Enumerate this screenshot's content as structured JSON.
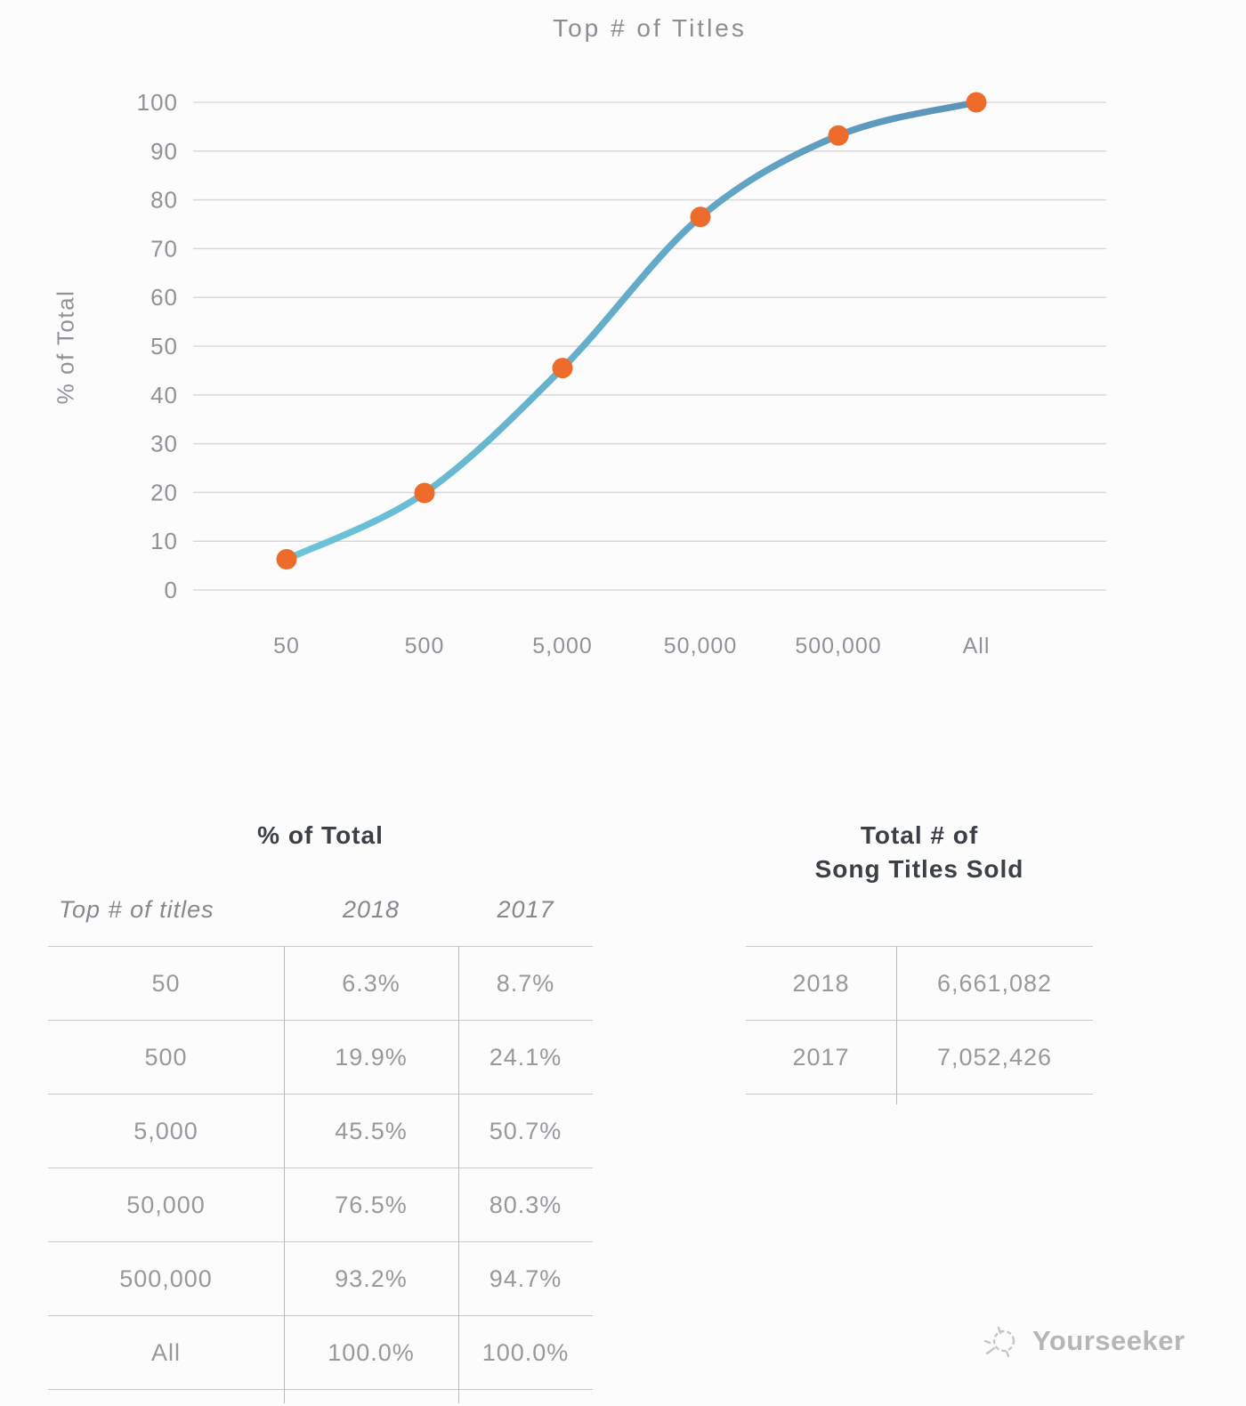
{
  "page": {
    "background": "#fcfcfc"
  },
  "chart_data": {
    "type": "line",
    "title": "Top # of Titles",
    "xlabel": "",
    "ylabel": "% of Total",
    "categories": [
      "50",
      "500",
      "5,000",
      "50,000",
      "500,000",
      "All"
    ],
    "series": [
      {
        "name": "2018",
        "values": [
          6.3,
          19.9,
          45.5,
          76.5,
          93.2,
          100.0
        ]
      }
    ],
    "ylim": [
      0,
      100
    ],
    "yticks": [
      0,
      10,
      20,
      30,
      40,
      50,
      60,
      70,
      80,
      90,
      100
    ],
    "grid": true,
    "legend": false,
    "grid_color": "#d9d9d9",
    "axis_text_color": "#8f9296",
    "line_gradient_start": "#6cc5d9",
    "line_gradient_end": "#5b92b9",
    "marker_color": "#ed6c2c"
  },
  "left_table": {
    "title": "% of Total",
    "columns": [
      "Top # of titles",
      "2018",
      "2017"
    ],
    "rows": [
      [
        "50",
        "6.3%",
        "8.7%"
      ],
      [
        "500",
        "19.9%",
        "24.1%"
      ],
      [
        "5,000",
        "45.5%",
        "50.7%"
      ],
      [
        "50,000",
        "76.5%",
        "80.3%"
      ],
      [
        "500,000",
        "93.2%",
        "94.7%"
      ],
      [
        "All",
        "100.0%",
        "100.0%"
      ]
    ]
  },
  "right_table": {
    "title_line1": "Total # of",
    "title_line2": "Song Titles Sold",
    "rows": [
      [
        "2018",
        "6,661,082"
      ],
      [
        "2017",
        "7,052,426"
      ]
    ]
  },
  "watermark": {
    "label": "Yourseeker"
  }
}
